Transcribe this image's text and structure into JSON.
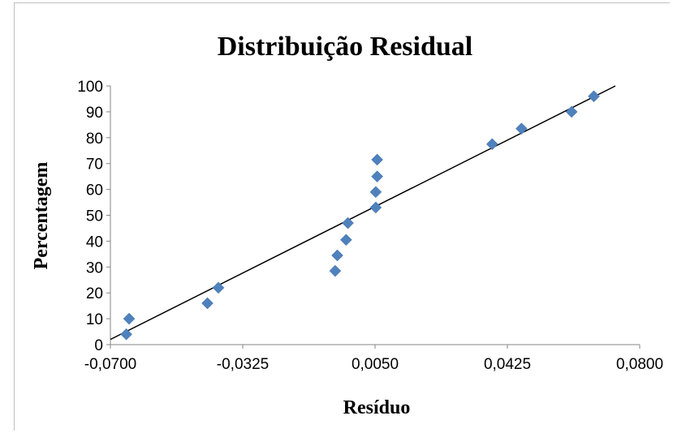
{
  "chart_data": {
    "type": "scatter",
    "title": "Distribuição Residual",
    "xlabel": "Resíduo",
    "ylabel": "Percentagem",
    "xlim": [
      -0.07,
      0.08
    ],
    "ylim": [
      0,
      100
    ],
    "x_ticks": [
      -0.07,
      -0.0325,
      0.005,
      0.0425,
      0.08
    ],
    "x_tick_labels": [
      "-0,0700",
      "-0,0325",
      "0,0050",
      "0,0425",
      "0,0800"
    ],
    "y_ticks": [
      0,
      10,
      20,
      30,
      40,
      50,
      60,
      70,
      80,
      90,
      100
    ],
    "y_tick_labels": [
      "0",
      "10",
      "20",
      "30",
      "40",
      "50",
      "60",
      "70",
      "80",
      "90",
      "100"
    ],
    "grid": false,
    "marker_color": "#4f81bd",
    "series": [
      {
        "x": [
          -0.0655,
          -0.0647,
          -0.0425,
          -0.0394,
          -0.0063,
          -0.0057,
          -0.0032,
          -0.0027,
          0.0052,
          0.0052,
          0.0056,
          0.0056,
          0.0382,
          0.0465,
          0.0607,
          0.067
        ],
        "y": [
          4,
          10,
          16,
          22,
          28.5,
          34.5,
          40.5,
          47,
          53,
          59,
          65,
          71.5,
          77.5,
          83.5,
          90,
          96
        ]
      }
    ],
    "trendline": {
      "x": [
        -0.07,
        0.0731
      ],
      "y": [
        2,
        100
      ],
      "color": "#000000"
    }
  }
}
